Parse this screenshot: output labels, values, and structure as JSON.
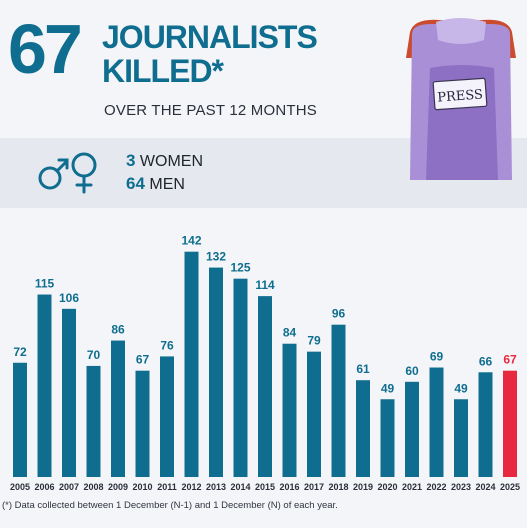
{
  "header": {
    "number": "67",
    "title_line1": "JOURNALISTS",
    "title_line2": "KILLED*",
    "subtitle": "OVER THE PAST 12 MONTHS"
  },
  "gender": {
    "icon": "gender-symbols-icon",
    "women_count": "3",
    "women_label": "WOMEN",
    "men_count": "64",
    "men_label": "MEN"
  },
  "illustration": {
    "sign_text": "PRESS"
  },
  "colors": {
    "accent": "#0f6e8f",
    "highlight": "#e8283f"
  },
  "chart_data": {
    "type": "bar",
    "title": "",
    "xlabel": "",
    "ylabel": "",
    "categories": [
      "2005",
      "2006",
      "2007",
      "2008",
      "2009",
      "2010",
      "2011",
      "2012",
      "2013",
      "2014",
      "2015",
      "2016",
      "2017",
      "2018",
      "2019",
      "2020",
      "2021",
      "2022",
      "2023",
      "2024",
      "2025"
    ],
    "values": [
      72,
      115,
      106,
      70,
      86,
      67,
      76,
      142,
      132,
      125,
      114,
      84,
      79,
      96,
      61,
      49,
      60,
      69,
      49,
      66,
      67
    ],
    "highlight_category": "2025",
    "ylim": [
      0,
      150
    ],
    "grid": false
  },
  "footnote": "(*) Data collected between 1 December (N-1) and 1 December (N) of each year."
}
